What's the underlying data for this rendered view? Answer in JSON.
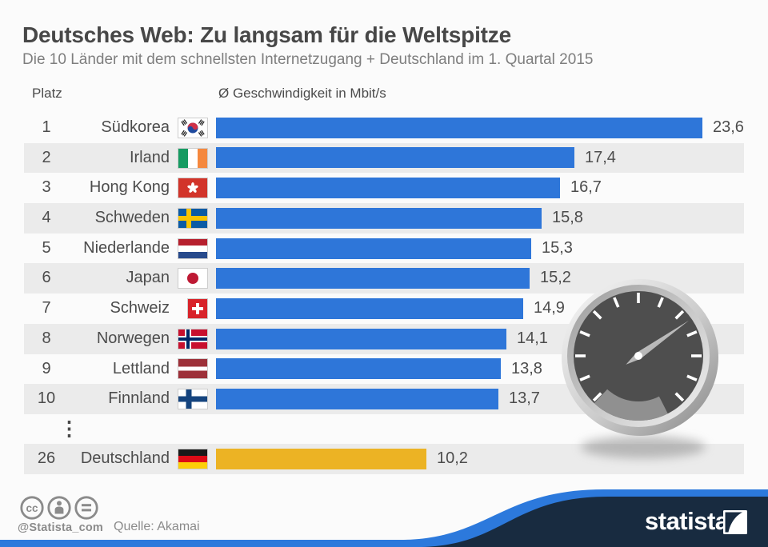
{
  "header": {
    "title": "Deutsches Web: Zu langsam für die Weltspitze",
    "subtitle": "Die 10 Länder mit dem schnellsten Internetzugang + Deutschland im 1. Quartal 2015"
  },
  "columns": {
    "rank": "Platz",
    "speed": "Ø Geschwindigkeit in Mbit/s"
  },
  "chart_data": {
    "type": "bar",
    "orientation": "horizontal",
    "title": "Deutsches Web: Zu langsam für die Weltspitze",
    "subtitle": "Die 10 Länder mit dem schnellsten Internetzugang + Deutschland im 1. Quartal 2015",
    "xlabel": "Ø Geschwindigkeit in Mbit/s",
    "unit": "Mbit/s",
    "xlim": [
      0,
      23.6
    ],
    "bar_color": "#2e76d9",
    "highlight_color": "#ecb324",
    "stripe_color": "#ebebeb",
    "gap_indicator": "⋮",
    "rows": [
      {
        "rank": "1",
        "country": "Südkorea",
        "flag": "south-korea",
        "value": 23.6,
        "label": "23,6"
      },
      {
        "rank": "2",
        "country": "Irland",
        "flag": "ireland",
        "value": 17.4,
        "label": "17,4"
      },
      {
        "rank": "3",
        "country": "Hong Kong",
        "flag": "hong-kong",
        "value": 16.7,
        "label": "16,7"
      },
      {
        "rank": "4",
        "country": "Schweden",
        "flag": "sweden",
        "value": 15.8,
        "label": "15,8"
      },
      {
        "rank": "5",
        "country": "Niederlande",
        "flag": "netherlands",
        "value": 15.3,
        "label": "15,3"
      },
      {
        "rank": "6",
        "country": "Japan",
        "flag": "japan",
        "value": 15.2,
        "label": "15,2"
      },
      {
        "rank": "7",
        "country": "Schweiz",
        "flag": "switzerland",
        "value": 14.9,
        "label": "14,9"
      },
      {
        "rank": "8",
        "country": "Norwegen",
        "flag": "norway",
        "value": 14.1,
        "label": "14,1"
      },
      {
        "rank": "9",
        "country": "Lettland",
        "flag": "latvia",
        "value": 13.8,
        "label": "13,8"
      },
      {
        "rank": "10",
        "country": "Finnland",
        "flag": "finland",
        "value": 13.7,
        "label": "13,7"
      },
      {
        "rank": "26",
        "country": "Deutschland",
        "flag": "germany",
        "value": 10.2,
        "label": "10,2",
        "highlight": true,
        "gap_before": true
      }
    ]
  },
  "footer": {
    "license_icons": [
      "cc-icon",
      "attribution-icon",
      "equals-icon"
    ],
    "handle": "@Statista_com",
    "source": "Quelle: Akamai",
    "brand": "statista"
  },
  "decoration": {
    "speedometer": "speedometer-graphic",
    "wave_navy": "#182b40",
    "wave_blue": "#2c79dc"
  }
}
